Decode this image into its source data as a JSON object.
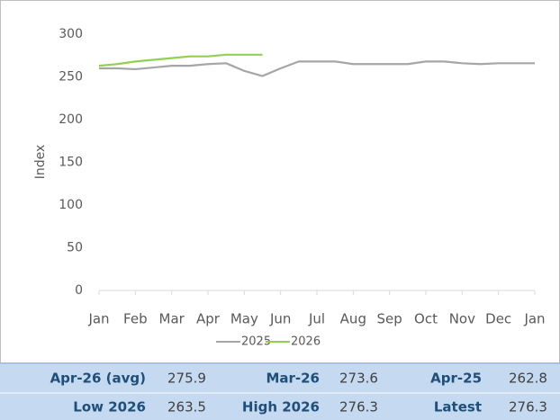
{
  "chart_data": {
    "type": "line",
    "ylabel": "Index",
    "x": [
      0,
      0.5,
      1,
      1.5,
      2,
      2.5,
      3,
      3.5,
      4,
      4.5,
      5,
      5.5,
      6,
      6.5,
      7,
      7.5,
      8,
      8.5,
      9,
      9.5,
      10,
      10.5,
      11,
      11.5,
      12
    ],
    "xlim": [
      0,
      12
    ],
    "xticks": [
      {
        "value": 0,
        "label": "Jan"
      },
      {
        "value": 1,
        "label": "Feb"
      },
      {
        "value": 2,
        "label": "Mar"
      },
      {
        "value": 3,
        "label": "Apr"
      },
      {
        "value": 4,
        "label": "May"
      },
      {
        "value": 5,
        "label": "Jun"
      },
      {
        "value": 6,
        "label": "Jul"
      },
      {
        "value": 7,
        "label": "Aug"
      },
      {
        "value": 8,
        "label": "Sep"
      },
      {
        "value": 9,
        "label": "Oct"
      },
      {
        "value": 10,
        "label": "Nov"
      },
      {
        "value": 11,
        "label": "Dec"
      },
      {
        "value": 12,
        "label": "Jan"
      }
    ],
    "ylim": [
      0,
      300
    ],
    "yticks": [
      0,
      50,
      100,
      150,
      200,
      250,
      300
    ],
    "series": [
      {
        "name": "2025",
        "color": "#a6a6a6",
        "values": [
          260,
          260,
          259,
          261,
          263,
          263,
          265,
          266,
          257,
          251,
          260,
          268,
          268,
          268,
          265,
          265,
          265,
          265,
          268,
          268,
          266,
          265,
          266,
          266,
          266
        ]
      },
      {
        "name": "2026",
        "color": "#92d050",
        "values": [
          263,
          265,
          268,
          270,
          272,
          274,
          274,
          276,
          276,
          276,
          null,
          null,
          null,
          null,
          null,
          null,
          null,
          null,
          null,
          null,
          null,
          null,
          null,
          null,
          null
        ]
      }
    ]
  },
  "table": {
    "rows": [
      [
        "Apr-26 (avg)",
        275.9,
        "Mar-26",
        273.6,
        "Apr-25",
        262.8
      ],
      [
        "Low 2026",
        263.5,
        "High 2026",
        276.3,
        "Latest",
        276.3
      ]
    ]
  }
}
